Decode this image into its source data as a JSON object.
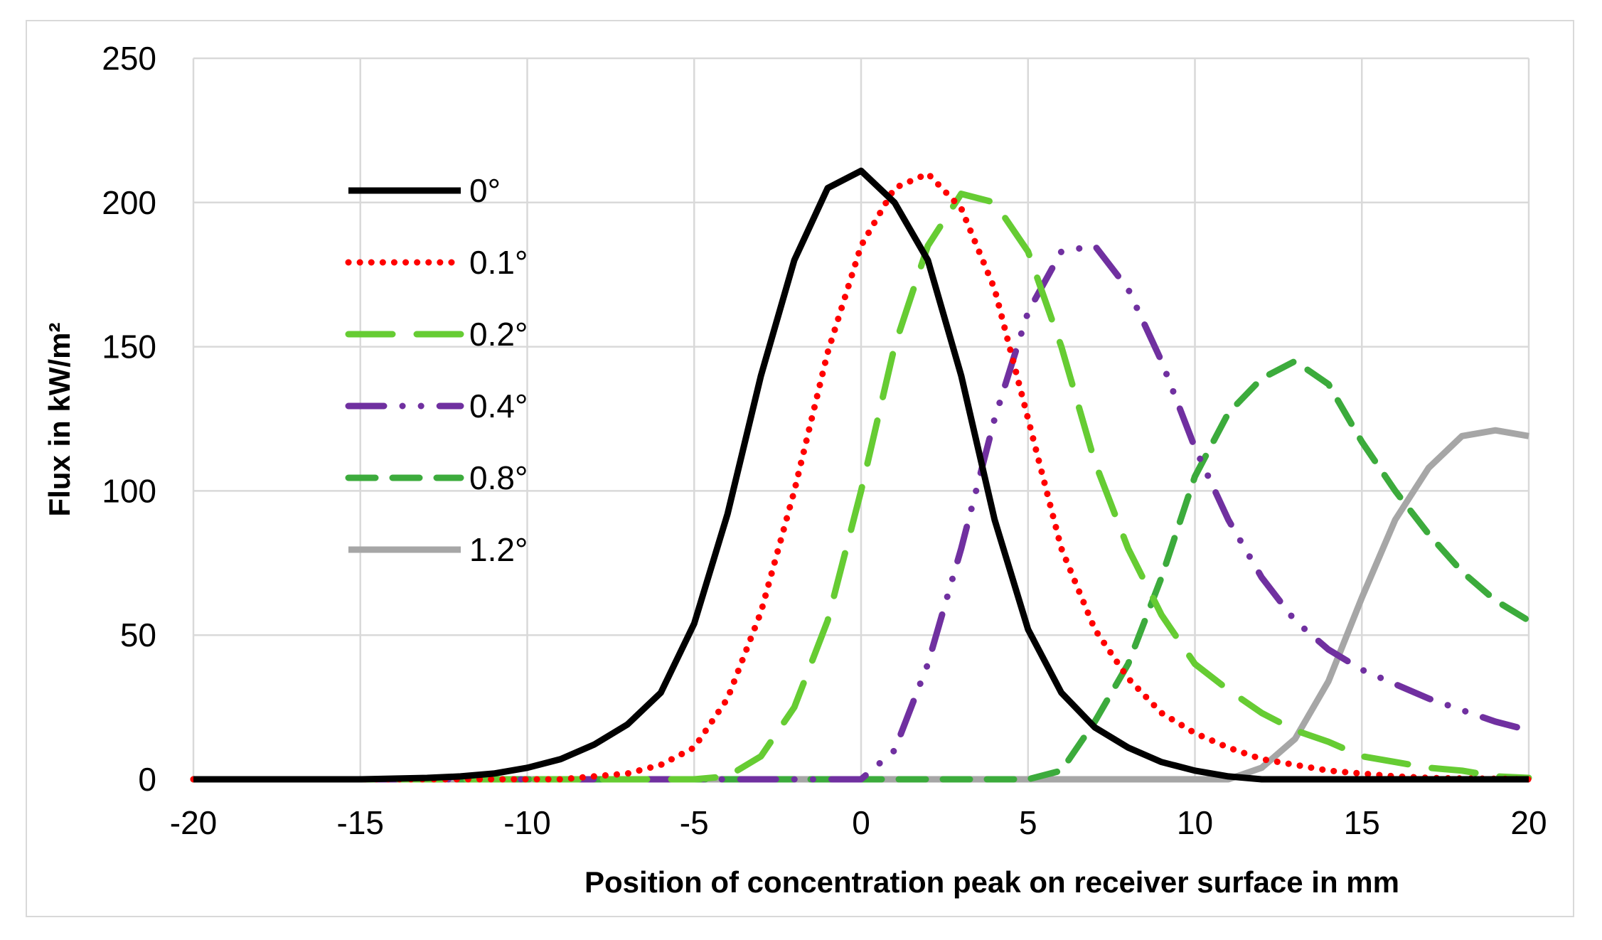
{
  "chart_data": {
    "type": "line",
    "title": "",
    "xlabel": "Position of concentration peak on receiver surface in mm",
    "ylabel": "Flux in kW/m²",
    "xlim": [
      -20,
      20
    ],
    "ylim": [
      0,
      250
    ],
    "xticks": [
      -20,
      -15,
      -10,
      -5,
      0,
      5,
      10,
      15,
      20
    ],
    "yticks": [
      0,
      50,
      100,
      150,
      200,
      250
    ],
    "grid": true,
    "legend_position": "upper-left",
    "series": [
      {
        "name": "0°",
        "color": "#000000",
        "style": "solid",
        "x": [
          -20,
          -15,
          -13,
          -12,
          -11,
          -10,
          -9,
          -8,
          -7,
          -6,
          -5,
          -4,
          -3,
          -2,
          -1,
          0,
          1,
          2,
          3,
          4,
          5,
          6,
          7,
          8,
          9,
          10,
          11,
          12,
          13,
          14,
          15,
          16,
          17,
          18,
          19,
          20
        ],
        "y": [
          0,
          0,
          0.5,
          1,
          2,
          4,
          7,
          12,
          19,
          30,
          54,
          92,
          140,
          180,
          205,
          211,
          200,
          180,
          140,
          90,
          52,
          30,
          18,
          11,
          6,
          3,
          1,
          0,
          0,
          0,
          0,
          0,
          0,
          0,
          0,
          0
        ]
      },
      {
        "name": "0.1°",
        "color": "#ff0000",
        "style": "dotted",
        "x": [
          -20,
          -9,
          -8,
          -7,
          -6,
          -5,
          -4,
          -3,
          -2,
          -1,
          0,
          1,
          2,
          3,
          4,
          5,
          6,
          7,
          8,
          9,
          10,
          11,
          12,
          13,
          14,
          15,
          16,
          17,
          18,
          19,
          20
        ],
        "y": [
          0,
          0,
          1,
          2,
          5,
          11,
          28,
          58,
          100,
          148,
          185,
          205,
          210,
          198,
          170,
          125,
          80,
          52,
          35,
          23,
          16,
          11,
          7,
          5,
          3,
          2,
          1,
          0.5,
          0.3,
          0.2,
          0
        ]
      },
      {
        "name": "0.2°",
        "color": "#66cc33",
        "style": "dashed",
        "x": [
          -20,
          -5,
          -4,
          -3,
          -2,
          -1,
          0,
          1,
          2,
          3,
          4,
          5,
          6,
          7,
          8,
          9,
          10,
          11,
          12,
          13,
          14,
          15,
          16,
          17,
          18,
          19,
          20
        ],
        "y": [
          0,
          0,
          1,
          8,
          25,
          55,
          100,
          150,
          185,
          203,
          200,
          183,
          150,
          110,
          80,
          57,
          40,
          31,
          23,
          17,
          13,
          8,
          6,
          4,
          3,
          1,
          0.5
        ]
      },
      {
        "name": "0.4°",
        "color": "#7030a0",
        "style": "dash-dot-dot",
        "x": [
          -20,
          0,
          1,
          2,
          3,
          4,
          5,
          6,
          7,
          8,
          9,
          10,
          11,
          12,
          13,
          14,
          15,
          16,
          17,
          18,
          19,
          20
        ],
        "y": [
          0,
          0,
          10,
          40,
          80,
          125,
          162,
          183,
          185,
          170,
          145,
          115,
          90,
          70,
          55,
          45,
          38,
          33,
          28,
          24,
          20,
          17
        ]
      },
      {
        "name": "0.8°",
        "color": "#3cab3c",
        "style": "long-dash",
        "x": [
          -20,
          5,
          6,
          7,
          8,
          9,
          10,
          11,
          12,
          13,
          14,
          15,
          16,
          17,
          18,
          19,
          20
        ],
        "y": [
          0,
          0,
          3,
          20,
          40,
          70,
          105,
          127,
          139,
          145,
          137,
          117,
          100,
          85,
          72,
          62,
          55
        ]
      },
      {
        "name": "1.2°",
        "color": "#a6a6a6",
        "style": "solid",
        "x": [
          -20,
          11,
          12,
          13,
          14,
          15,
          16,
          17,
          18,
          19,
          20
        ],
        "y": [
          0,
          0,
          4,
          14,
          34,
          63,
          90,
          108,
          119,
          121,
          119
        ]
      }
    ]
  }
}
